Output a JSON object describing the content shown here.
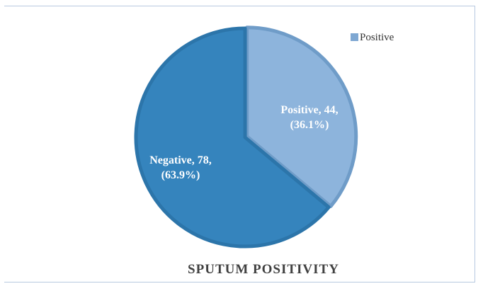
{
  "chart_data": {
    "type": "pie",
    "title": "SPUTUM POSITIVITY",
    "slices": [
      {
        "name": "Positive",
        "value": 44,
        "percent": 36.1,
        "label_line1": "Positive, 44,",
        "label_line2": "(36.1%)",
        "color": "#8db4dc",
        "edge": "#6f9cc8"
      },
      {
        "name": "Negative",
        "value": 78,
        "percent": 63.9,
        "label_line1": "Negative, 78,",
        "label_line2": "(63.9%)",
        "color": "#3584bd",
        "edge": "#2c75aa"
      }
    ],
    "legend": {
      "position": "top-right",
      "entries": [
        "Positive"
      ],
      "swatch_color": "#7ea7d2"
    }
  }
}
